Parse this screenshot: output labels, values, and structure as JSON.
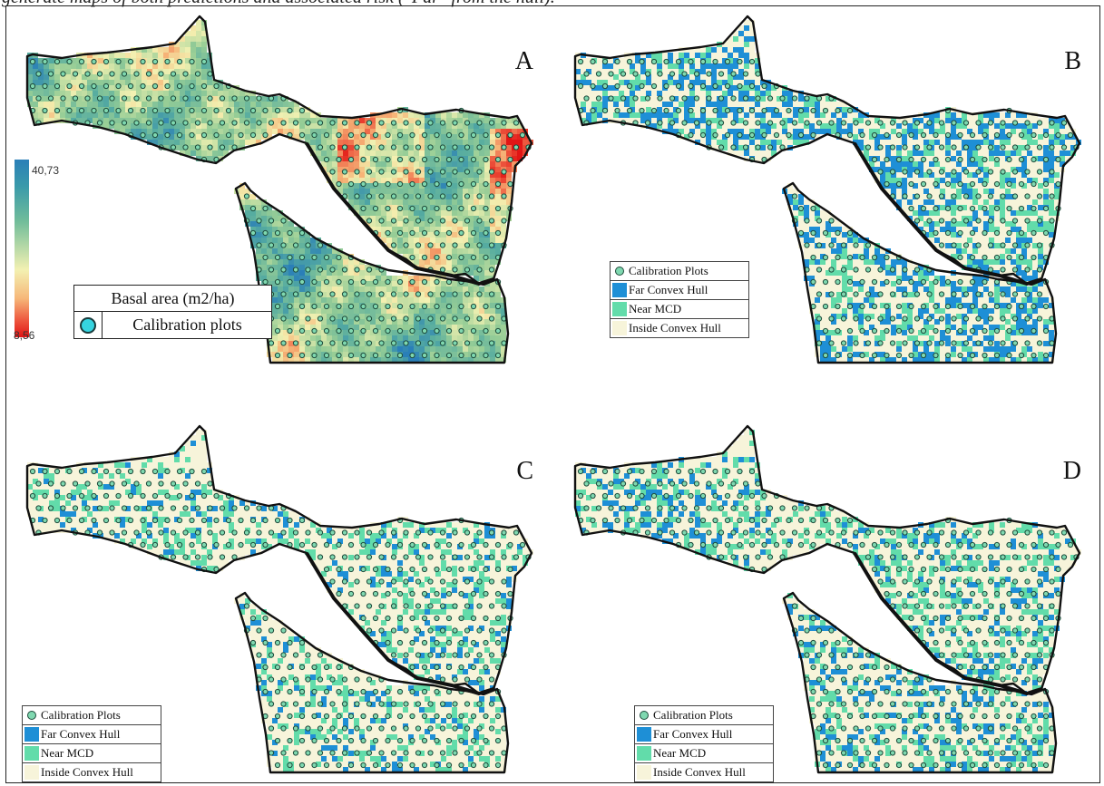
{
  "caption": "generate maps of both predictions and associated risk (\"Far\" from the hull).",
  "colors": {
    "far": "#1e8fd6",
    "near": "#62dcaa",
    "inside": "#f7f4da",
    "plot_fill": "#7fd8b0",
    "plot_stroke": "#1d4a3a",
    "boundary": "#111111"
  },
  "panels": [
    {
      "id": "A",
      "letter": "A",
      "kind": "basal_area",
      "colorbar": {
        "max_label": "40,73",
        "min_label": "8,56"
      },
      "legend": {
        "title": "Basal area (m2/ha)",
        "plots_label": "Calibration plots"
      }
    },
    {
      "id": "B",
      "letter": "B",
      "kind": "risk",
      "far_share": 0.3,
      "near_share": 0.2,
      "legend": [
        "Calibration Plots",
        "Far Convex Hull",
        "Near MCD",
        "Inside Convex Hull"
      ]
    },
    {
      "id": "C",
      "letter": "C",
      "kind": "risk",
      "far_share": 0.1,
      "near_share": 0.2,
      "legend": [
        "Calibration Plots",
        "Far Convex Hull",
        "Near MCD",
        "Inside Convex Hull"
      ]
    },
    {
      "id": "D",
      "letter": "D",
      "kind": "risk",
      "far_share": 0.16,
      "near_share": 0.2,
      "legend": [
        "Calibration Plots",
        "Far Convex Hull",
        "Near MCD",
        "Inside Convex Hull"
      ]
    }
  ]
}
